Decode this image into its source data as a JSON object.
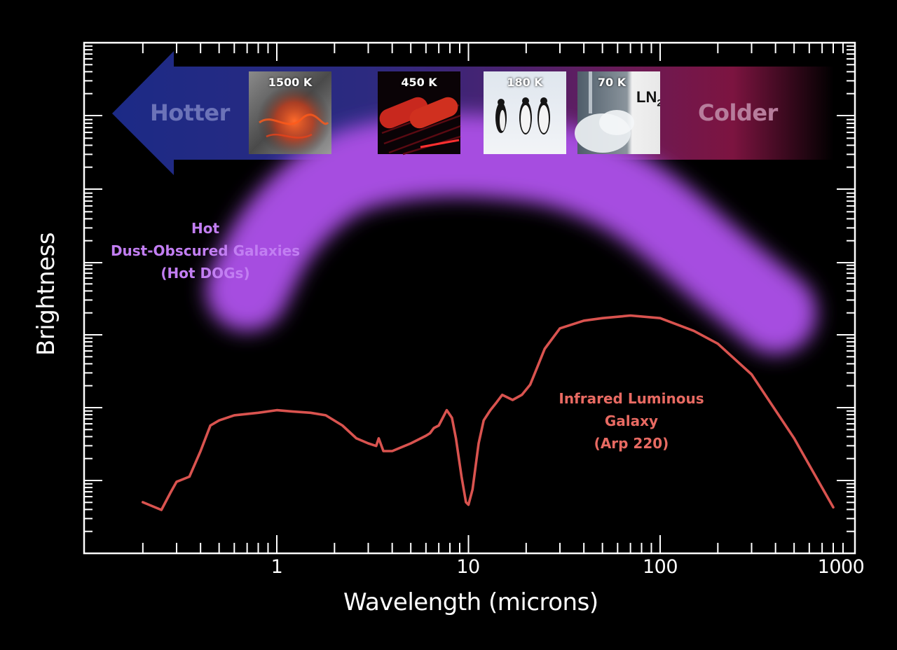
{
  "chart_data": {
    "type": "line",
    "title": "",
    "xlabel": "Wavelength (microns)",
    "ylabel": "Brightness",
    "xscale": "log",
    "xlim": [
      0.1,
      1000
    ],
    "x_tick_labels": [
      "1",
      "10",
      "100",
      "1000"
    ],
    "y_tick_labels": [],
    "grid": false,
    "legend": "none (inline annotations)",
    "series": [
      {
        "name": "Infrared Luminous Galaxy (Arp 220)",
        "color": "#d9534f",
        "style": "line",
        "x": [
          0.2,
          0.25,
          0.28,
          0.3,
          0.35,
          0.4,
          0.45,
          0.5,
          0.6,
          0.8,
          1.0,
          1.2,
          1.5,
          1.8,
          2.2,
          2.6,
          3.0,
          3.3,
          3.4,
          3.6,
          4.0,
          5.0,
          6.0,
          6.3,
          6.6,
          7.0,
          7.7,
          8.2,
          8.6,
          9.2,
          9.7,
          10.0,
          10.5,
          11.3,
          12.0,
          13.0,
          14.0,
          15.0,
          17.0,
          19.0,
          21.0,
          25.0,
          30.0,
          40.0,
          50.0,
          70.0,
          100.0,
          150.0,
          200.0,
          300.0,
          500.0,
          800.0
        ],
        "brightness_rel": [
          0.2,
          0.17,
          0.24,
          0.28,
          0.3,
          0.4,
          0.5,
          0.52,
          0.54,
          0.55,
          0.56,
          0.555,
          0.55,
          0.54,
          0.5,
          0.45,
          0.43,
          0.42,
          0.45,
          0.4,
          0.4,
          0.43,
          0.46,
          0.47,
          0.49,
          0.5,
          0.56,
          0.53,
          0.45,
          0.3,
          0.2,
          0.19,
          0.25,
          0.43,
          0.52,
          0.56,
          0.59,
          0.62,
          0.6,
          0.62,
          0.66,
          0.8,
          0.88,
          0.91,
          0.92,
          0.93,
          0.92,
          0.87,
          0.82,
          0.7,
          0.45,
          0.18
        ]
      },
      {
        "name": "Hot Dust-Obscured Galaxies (Hot DOGs)",
        "color": "#a64de0",
        "style": "broad diffuse band",
        "x": [
          0.7,
          1.0,
          2.0,
          4.0,
          8.0,
          15.0,
          30.0,
          60.0,
          100.0,
          200.0,
          400.0
        ],
        "brightness_rel": [
          1.03,
          1.27,
          1.48,
          1.54,
          1.56,
          1.55,
          1.52,
          1.43,
          1.32,
          1.12,
          0.94
        ]
      }
    ],
    "annotations": [
      {
        "text": "Hot Dust-Obscured Galaxies (Hot DOGs)",
        "color": "#c27ef2"
      },
      {
        "text": "Infrared Luminous Galaxy (Arp 220)",
        "color": "#e86a62"
      },
      {
        "text": "Hotter ← → Colder temperature gradient arrow along top"
      }
    ]
  },
  "axes": {
    "x_label": "Wavelength (microns)",
    "y_label": "Brightness",
    "x_ticks": [
      "1",
      "10",
      "100",
      "1000"
    ]
  },
  "arrow": {
    "left_label": "Hotter",
    "right_label": "Colder",
    "hot_color": "#1f2a85",
    "cold_color": "#7a1440",
    "thumbnails": [
      {
        "label": "1500 K",
        "subject": "lava"
      },
      {
        "label": "450 K",
        "subject": "sausages-on-grill"
      },
      {
        "label": "180 K",
        "subject": "penguins"
      },
      {
        "label": "70 K",
        "subject": "liquid-nitrogen",
        "tag": "LN",
        "tag_sub": "2"
      }
    ]
  },
  "annotations": {
    "hot_dogs": {
      "line1": "Hot",
      "line2": "Dust-Obscured Galaxies",
      "line3": "(Hot DOGs)",
      "color": "#c27ef2"
    },
    "arp220": {
      "line1": "Infrared Luminous",
      "line2": "Galaxy",
      "line3": "(Arp 220)",
      "color": "#e86a62"
    }
  }
}
